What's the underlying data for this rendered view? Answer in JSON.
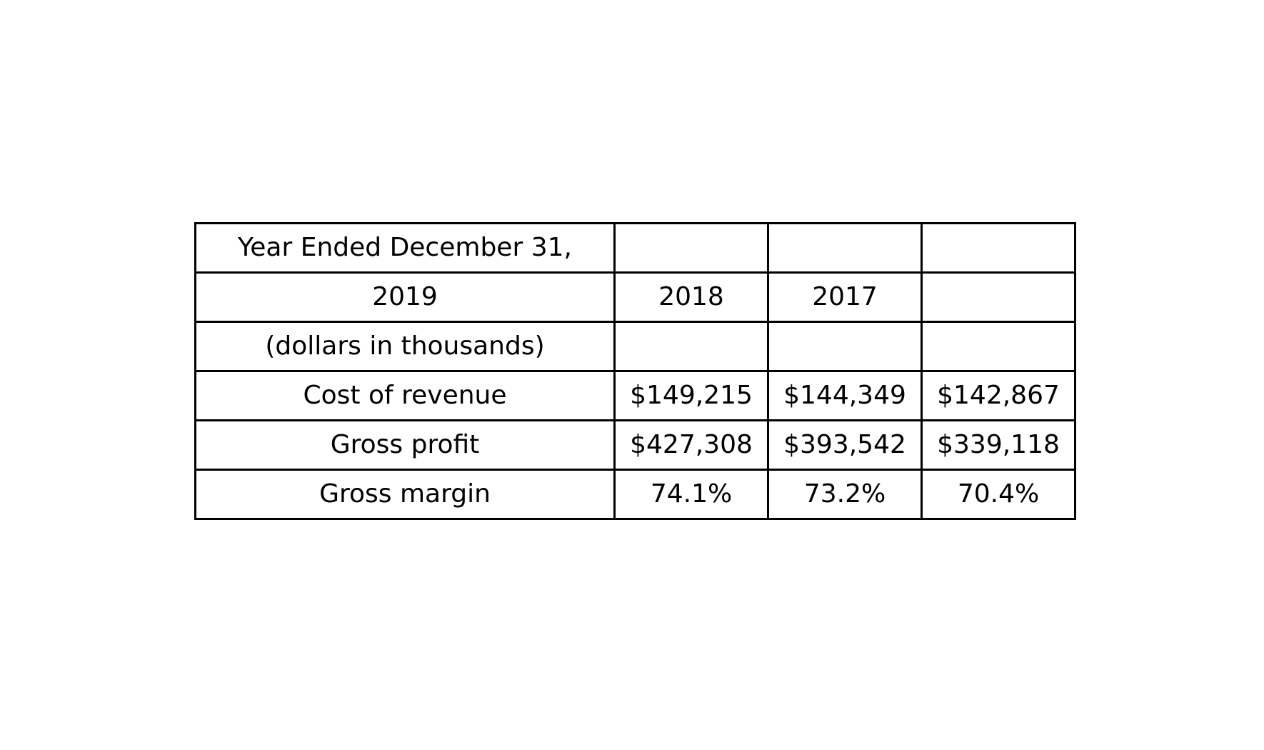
{
  "table": {
    "rows": [
      [
        "Year Ended December 31,",
        "",
        "",
        ""
      ],
      [
        "2019",
        "2018",
        "2017",
        ""
      ],
      [
        "(dollars in thousands)",
        "",
        "",
        ""
      ],
      [
        "Cost of revenue",
        "$149,215",
        "$144,349",
        "$142,867"
      ],
      [
        "Gross profit",
        "$427,308",
        "$393,542",
        "$339,118"
      ],
      [
        "Gross margin",
        "74.1%",
        "73.2%",
        "70.4%"
      ]
    ]
  }
}
